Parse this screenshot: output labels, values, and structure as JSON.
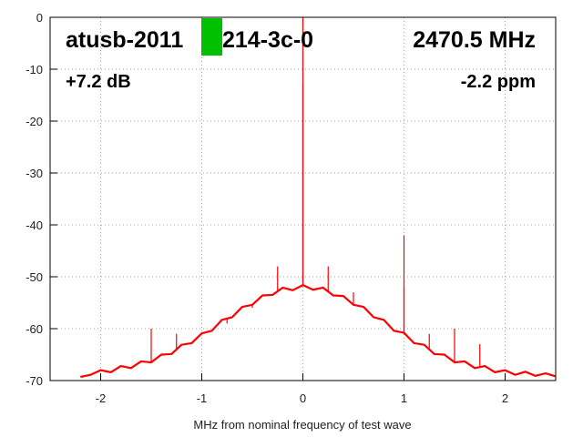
{
  "chart_data": {
    "type": "line",
    "annotations": [
      "atusb-2011",
      "214-3c-0",
      "2470.5 MHz",
      "+7.2 dB",
      "-2.2 ppm"
    ],
    "x_label": "MHz from nominal frequency of test wave",
    "xlim": [
      -2.5,
      2.5
    ],
    "ylim": [
      -70,
      0
    ],
    "xticks": [
      -2,
      -1,
      0,
      1,
      2
    ],
    "yticks": [
      0,
      -10,
      -20,
      -30,
      -40,
      -50,
      -60,
      -70
    ],
    "grid": true,
    "series": [
      {
        "color": "#ff0000",
        "x": [
          -2.2,
          -2.1,
          -2.0,
          -1.9,
          -1.8,
          -1.7,
          -1.6,
          -1.5,
          -1.4,
          -1.3,
          -1.2,
          -1.1,
          -1.0,
          -0.9,
          -0.8,
          -0.7,
          -0.6,
          -0.5,
          -0.4,
          -0.3,
          -0.2,
          -0.1,
          0,
          0.1,
          0.2,
          0.3,
          0.4,
          0.5,
          0.6,
          0.7,
          0.8,
          0.9,
          1.0,
          1.1,
          1.2,
          1.3,
          1.4,
          1.5,
          1.6,
          1.7,
          1.8,
          1.9,
          2.0,
          2.1,
          2.2,
          2.3,
          2.4,
          2.5
        ],
        "values": [
          -69.3,
          -68.9,
          -68.0,
          -68.4,
          -67.2,
          -67.6,
          -66.3,
          -66.5,
          -65.0,
          -64.9,
          -63.1,
          -62.8,
          -60.9,
          -60.4,
          -58.3,
          -57.8,
          -55.8,
          -55.4,
          -53.6,
          -53.5,
          -52.1,
          -52.6,
          -51.6,
          -52.5,
          -52.1,
          -53.6,
          -53.7,
          -55.4,
          -55.8,
          -57.8,
          -58.3,
          -60.4,
          -60.8,
          -62.8,
          -63.1,
          -64.9,
          -65.0,
          -66.5,
          -66.3,
          -67.6,
          -67.2,
          -68.4,
          -68.0,
          -68.9,
          -68.3,
          -69.1,
          -68.6,
          -69.2
        ]
      },
      {
        "color": "#ff0000",
        "spikes": true,
        "x": [
          -1.5,
          -1.25,
          -1.0,
          -0.75,
          -0.5,
          -0.25,
          0,
          0,
          0.25,
          0.5,
          1.0,
          1.0,
          1.25,
          1.5,
          1.75
        ],
        "values": [
          -60,
          -61,
          -61,
          -59,
          -56,
          -48,
          0,
          -13,
          -48,
          -53,
          -42,
          -52,
          -61,
          -60,
          -63
        ]
      }
    ]
  }
}
